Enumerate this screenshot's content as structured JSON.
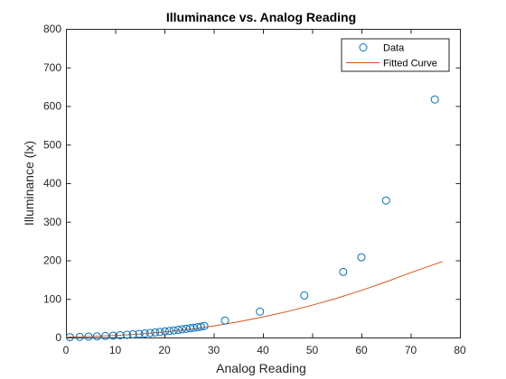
{
  "chart_data": {
    "type": "scatter",
    "title": "Illuminance vs. Analog Reading",
    "xlabel": "Analog Reading",
    "ylabel": "Illuminance (lx)",
    "xlim": [
      0,
      80
    ],
    "ylim": [
      0,
      800
    ],
    "xticks": [
      0,
      10,
      20,
      30,
      40,
      50,
      60,
      70,
      80
    ],
    "yticks": [
      0,
      100,
      200,
      300,
      400,
      500,
      600,
      700,
      800
    ],
    "grid": false,
    "legend_position": "top-right",
    "series": [
      {
        "name": "Data",
        "kind": "markers",
        "marker": "circle",
        "color": "#0072BD",
        "x": [
          0.8,
          2.8,
          4.6,
          6.3,
          8.0,
          9.6,
          11.0,
          12.4,
          13.6,
          14.9,
          16.0,
          17.1,
          18.1,
          19.1,
          20.1,
          21.0,
          21.9,
          22.8,
          23.6,
          24.4,
          25.2,
          25.9,
          26.7,
          27.4,
          28.1,
          32.3,
          39.4,
          48.4,
          56.3,
          60.0,
          65.0,
          74.9
        ],
        "y": [
          1,
          1.6,
          2.2,
          2.9,
          3.8,
          4.8,
          5.9,
          7.0,
          8.2,
          9.4,
          10.6,
          11.8,
          13.1,
          14.4,
          15.7,
          17.0,
          18.4,
          19.8,
          21.2,
          22.6,
          24.0,
          25.4,
          26.8,
          28.2,
          29.7,
          44,
          67,
          109,
          170,
          208,
          355,
          617
        ]
      },
      {
        "name": "Fitted Curve",
        "kind": "line",
        "color": "#D95319",
        "x": [
          0,
          5,
          10,
          15,
          20,
          25,
          30,
          35,
          40,
          45,
          50,
          55,
          60,
          65,
          70,
          76.5
        ],
        "y": [
          1.0,
          2.5,
          5.3,
          9.0,
          14.4,
          21.2,
          30.0,
          40.6,
          53.0,
          67.4,
          83.7,
          101.8,
          122,
          144,
          168,
          197
        ]
      }
    ]
  }
}
